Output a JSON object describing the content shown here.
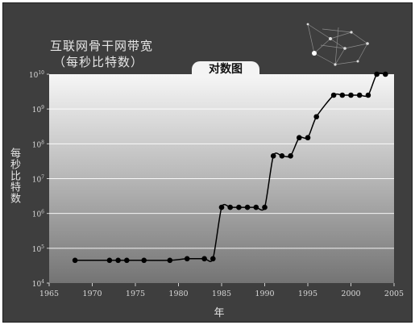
{
  "title_lines": [
    "互联网骨干网带宽",
    "（每秒比特数）"
  ],
  "badge": "对数图",
  "chart_data": {
    "type": "line",
    "title": "互联网骨干网带宽（每秒比特数）",
    "xlabel": "年",
    "ylabel": "每秒比特数",
    "yscale": "log",
    "xlim": [
      1965,
      2005
    ],
    "ylim": [
      10000,
      10000000000
    ],
    "xticks": [
      1965,
      1970,
      1975,
      1980,
      1985,
      1990,
      1995,
      2000,
      2005
    ],
    "yticks": [
      {
        "value": 10000,
        "base": "10",
        "exp": "4"
      },
      {
        "value": 100000,
        "base": "10",
        "exp": "5"
      },
      {
        "value": 1000000,
        "base": "10",
        "exp": "6"
      },
      {
        "value": 10000000,
        "base": "10",
        "exp": "7"
      },
      {
        "value": 100000000,
        "base": "10",
        "exp": "8"
      },
      {
        "value": 1000000000,
        "base": "10",
        "exp": "9"
      },
      {
        "value": 10000000000,
        "base": "10",
        "exp": "10"
      }
    ],
    "grid": true,
    "marker": "circle",
    "x": [
      1968,
      1972,
      1973,
      1974,
      1976,
      1979,
      1981,
      1983,
      1984,
      1985,
      1986,
      1987,
      1988,
      1989,
      1990,
      1991,
      1992,
      1993,
      1994,
      1995,
      1996,
      1998,
      1999,
      2000,
      2001,
      2002,
      2003,
      2004
    ],
    "y": [
      45000,
      45000,
      45000,
      45000,
      45000,
      45000,
      50000,
      50000,
      50000,
      1500000,
      1500000,
      1500000,
      1500000,
      1500000,
      1500000,
      45000000,
      45000000,
      45000000,
      150000000,
      150000000,
      600000000,
      2500000000,
      2500000000,
      2500000000,
      2500000000,
      2500000000,
      10000000000,
      10000000000
    ]
  },
  "colors": {
    "frame": "#3e3e3e",
    "plot_top": "#f6f6f6",
    "plot_bottom": "#747474",
    "line": "#000000",
    "marker": "#000000",
    "grid": "#ffffff",
    "text": "#e6e6e6"
  },
  "decoration": "network-graphic-icon"
}
